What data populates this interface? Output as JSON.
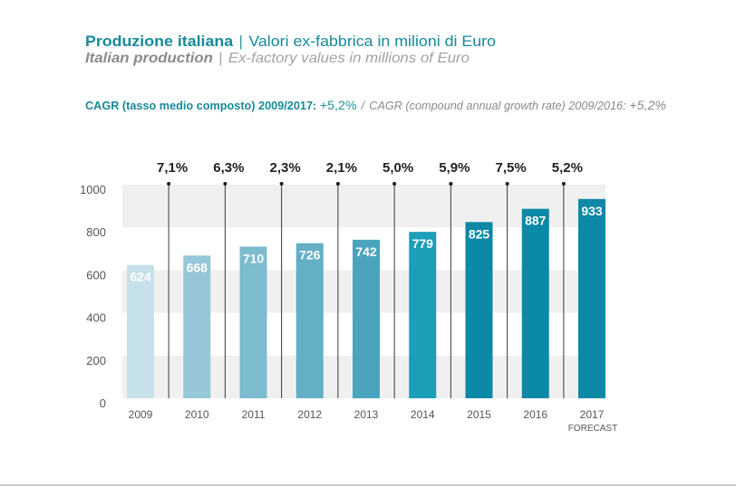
{
  "header": {
    "title_it_bold": "Produzione italiana",
    "title_sep": "|",
    "title_it_rest": "Valori ex-fabbrica in milioni di Euro",
    "title_en_bold": "Italian production",
    "title_en_rest": "Ex-factory values in millions of Euro"
  },
  "cagr": {
    "it_label": "CAGR (tasso medio composto) 2009/2017:",
    "it_value": "+5,2%",
    "sep": "/",
    "en_label": "CAGR (compound annual growth rate) 2009/2016:",
    "en_value": "+5,2%"
  },
  "colors": {
    "accent_teal": "#178a98",
    "band_gray": "#f1f0f0",
    "connector": "#3a3a3a"
  },
  "chart_data": {
    "type": "bar",
    "title": "Produzione italiana | Valori ex-fabbrica in milioni di Euro",
    "subtitle": "Italian production | Ex-factory values in millions of Euro",
    "xlabel": "",
    "ylabel": "",
    "categories": [
      "2009",
      "2010",
      "2011",
      "2012",
      "2013",
      "2014",
      "2015",
      "2016",
      "2017"
    ],
    "category_sublabels": [
      "",
      "",
      "",
      "",
      "",
      "",
      "",
      "",
      "FORECAST"
    ],
    "values": [
      624,
      668,
      710,
      726,
      742,
      779,
      825,
      887,
      933
    ],
    "value_labels": [
      "624",
      "668",
      "710",
      "726",
      "742",
      "779",
      "825",
      "887",
      "933"
    ],
    "growth_rates": [
      "7,1%",
      "6,3%",
      "2,3%",
      "2,1%",
      "5,0%",
      "5,9%",
      "7,5%",
      "5,2%"
    ],
    "bar_colors": [
      "#c6e1e9",
      "#96c7d7",
      "#7dbbce",
      "#63afc6",
      "#4aa4be",
      "#1b9eb8",
      "#0b89a6",
      "#0b89a6",
      "#0b89a6"
    ],
    "ylim": [
      0,
      1000
    ],
    "yticks": [
      0,
      200,
      400,
      600,
      800,
      1000
    ],
    "ytick_labels": [
      "0",
      "200",
      "400",
      "600",
      "800",
      "1000"
    ],
    "grid": "alternating horizontal bands",
    "legend": "none"
  }
}
